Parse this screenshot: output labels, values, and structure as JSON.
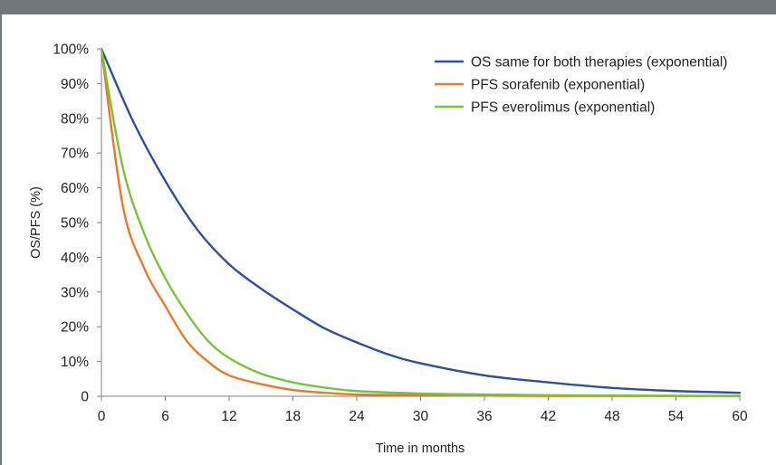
{
  "chart_data": {
    "type": "line",
    "xlabel": "Time in months",
    "ylabel": "OS/PFS (%)",
    "xlim": [
      0,
      60
    ],
    "ylim": [
      0,
      100
    ],
    "x_ticks": [
      0,
      6,
      12,
      18,
      24,
      30,
      36,
      42,
      48,
      54,
      60
    ],
    "x_tick_labels": [
      "0",
      "6",
      "12",
      "18",
      "24",
      "30",
      "36",
      "42",
      "48",
      "54",
      "60"
    ],
    "y_ticks": [
      0,
      10,
      20,
      30,
      40,
      50,
      60,
      70,
      80,
      90,
      100
    ],
    "y_tick_labels": [
      "0",
      "10%",
      "20%",
      "30%",
      "40%",
      "50%",
      "60%",
      "70%",
      "80%",
      "90%",
      "100%"
    ],
    "grid": false,
    "legend_position": "top-right",
    "series": [
      {
        "name": "OS same for both therapies (exponential)",
        "color": "#2e4f9c",
        "x": [
          0,
          3,
          6,
          9,
          12,
          15,
          18,
          21,
          24,
          27,
          30,
          36,
          42,
          48,
          54,
          60
        ],
        "y": [
          100,
          79,
          62,
          48,
          38,
          31,
          25,
          19.5,
          15.5,
          12,
          9.5,
          6,
          4,
          2.4,
          1.5,
          1
        ]
      },
      {
        "name": "PFS sorafenib (exponential)",
        "color": "#e8782a",
        "x": [
          0,
          2,
          4,
          6,
          8,
          10,
          12,
          15,
          18,
          21,
          24,
          30,
          36,
          42,
          48,
          54,
          60
        ],
        "y": [
          100,
          55,
          37,
          26,
          16,
          10,
          6,
          3.5,
          1.8,
          1,
          0.5,
          0.3,
          0.2,
          0.1,
          0.1,
          0.1,
          0.1
        ]
      },
      {
        "name": "PFS everolimus (exponential)",
        "color": "#7ac143",
        "x": [
          0,
          2,
          4,
          6,
          8,
          10,
          12,
          15,
          18,
          21,
          24,
          30,
          36,
          42,
          48,
          54,
          60
        ],
        "y": [
          100,
          66,
          47,
          34,
          24,
          16,
          11,
          6.5,
          4,
          2.5,
          1.5,
          0.8,
          0.5,
          0.3,
          0.2,
          0.1,
          0.1
        ]
      }
    ]
  }
}
